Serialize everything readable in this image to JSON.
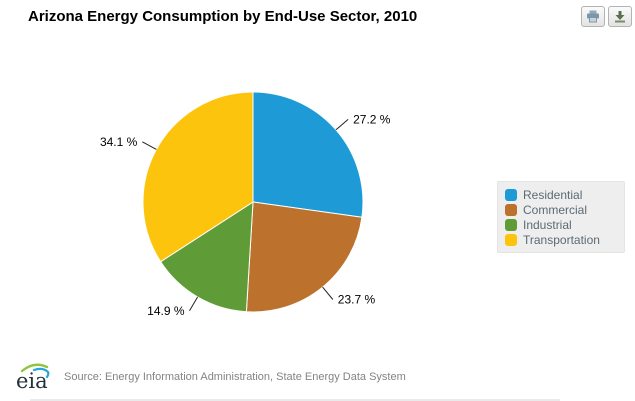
{
  "header": {
    "title": "Arizona Energy Consumption by End-Use Sector, 2010",
    "print_button_label": "Print chart",
    "download_button_label": "Download chart"
  },
  "chart_data": {
    "type": "pie",
    "title": "Arizona Energy Consumption by End-Use Sector, 2010",
    "unit": "%",
    "legend_position": "right",
    "start_angle_deg": 0,
    "direction": "clockwise",
    "series": [
      {
        "name": "Residential",
        "value": 27.2,
        "label": "27.2 %",
        "color": "#1E9BD7"
      },
      {
        "name": "Commercial",
        "value": 23.7,
        "label": "23.7 %",
        "color": "#BC722C"
      },
      {
        "name": "Industrial",
        "value": 14.9,
        "label": "14.9 %",
        "color": "#5F9C38"
      },
      {
        "name": "Transportation",
        "value": 34.1,
        "label": "34.1 %",
        "color": "#FDC40D"
      }
    ]
  },
  "footer": {
    "logo_text": "eia",
    "source": "Source: Energy Information Administration, State Energy Data System"
  }
}
